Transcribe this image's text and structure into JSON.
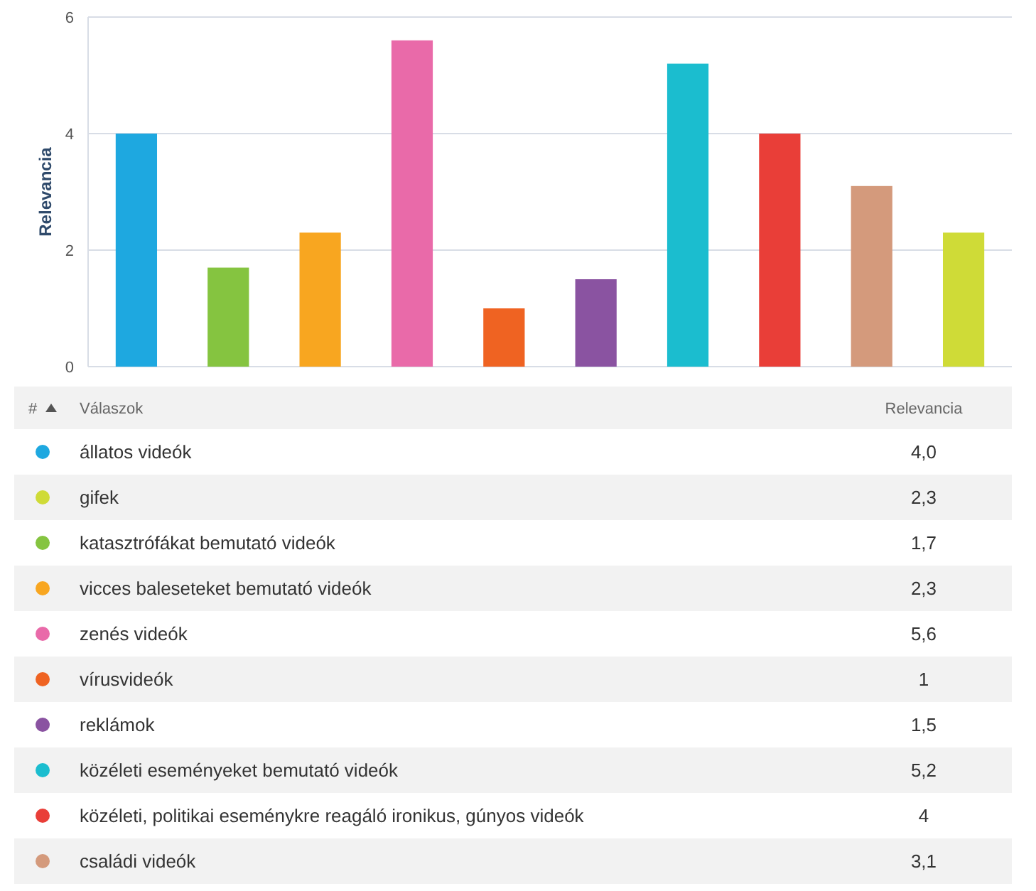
{
  "chart_data": {
    "type": "bar",
    "ylabel": "Relevancia",
    "stacked": true,
    "legend": "bottom",
    "categories": [
      null,
      null,
      null,
      null,
      null,
      null,
      null,
      null,
      null,
      null
    ],
    "series": [
      {
        "name": "állatos videók",
        "color": "#1ea8e0",
        "values": [
          4.0,
          null,
          null,
          null,
          null,
          null,
          null,
          null,
          null,
          null
        ]
      },
      {
        "name": "gifek",
        "color": "#cfdb37",
        "values": [
          null,
          null,
          null,
          null,
          null,
          null,
          null,
          null,
          null,
          2.3
        ]
      },
      {
        "name": "katasztrófákat bemutató videók",
        "color": "#85c440",
        "values": [
          null,
          1.7,
          null,
          null,
          null,
          null,
          null,
          null,
          null,
          null
        ]
      },
      {
        "name": "vicces baleseteket bemutató videók",
        "color": "#f8a620",
        "values": [
          null,
          null,
          2.3,
          null,
          null,
          null,
          null,
          null,
          null,
          null
        ]
      },
      {
        "name": "zenés videók",
        "color": "#e96aa9",
        "values": [
          null,
          null,
          null,
          5.6,
          null,
          null,
          null,
          null,
          null,
          null
        ]
      },
      {
        "name": "vírusvideók",
        "color": "#ef6322",
        "values": [
          null,
          null,
          null,
          null,
          1,
          null,
          null,
          null,
          null,
          null
        ]
      },
      {
        "name": "reklámok",
        "color": "#8a53a1",
        "values": [
          null,
          null,
          null,
          null,
          null,
          1.5,
          null,
          null,
          null,
          null
        ]
      },
      {
        "name": "közéleti eseményeket bemutató videók",
        "color": "#1bbdcf",
        "values": [
          null,
          null,
          null,
          null,
          null,
          null,
          5.2,
          null,
          null,
          null
        ]
      },
      {
        "name": "közéleti, politikai eseménykre reagáló ironikus, gúnyos videók",
        "color": "#e93e38",
        "values": [
          null,
          null,
          null,
          null,
          null,
          null,
          null,
          4,
          null,
          null
        ]
      },
      {
        "name": "családi videók",
        "color": "#d49a7c",
        "values": [
          null,
          null,
          null,
          null,
          null,
          null,
          null,
          null,
          3.1,
          null
        ]
      }
    ],
    "ylim": [
      0,
      6
    ],
    "yticks": [
      0,
      2,
      4,
      6
    ],
    "grid": "y",
    "annotations": [
      "#",
      "Válaszok",
      "Relevancia",
      "4,0",
      "2,3",
      "1,7",
      "2,3",
      "5,6",
      "1",
      "1,5",
      "5,2",
      "4",
      "3,1"
    ]
  }
}
